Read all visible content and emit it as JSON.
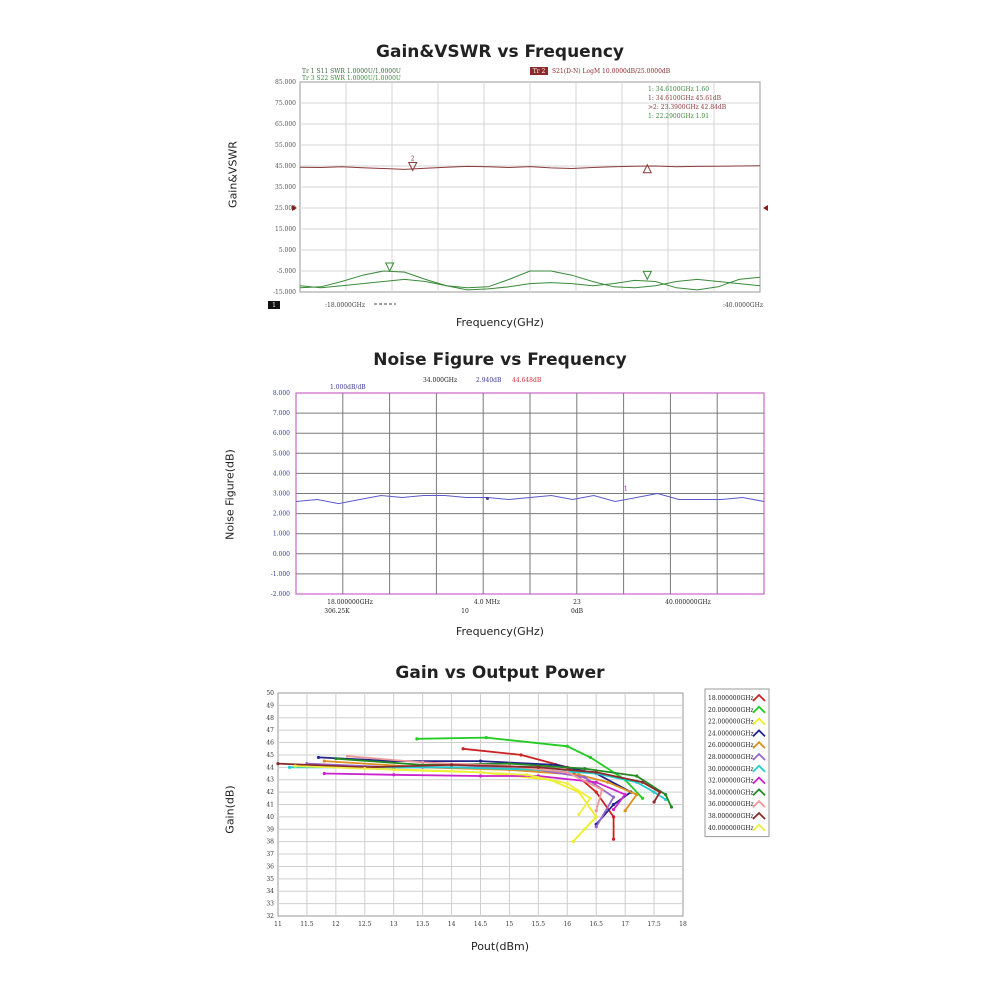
{
  "chart_data": [
    {
      "type": "line",
      "title": "Gain&VSWR vs Frequency",
      "xlabel": "Frequency(GHz)",
      "ylabel": "Gain&VSWR",
      "xlim": [
        18,
        40
      ],
      "ylim": [
        -15,
        85
      ],
      "y_ticks": [
        "85.000",
        "75.000",
        "65.000",
        "55.000",
        "45.000",
        "35.000",
        "25.000",
        "15.000",
        "5.000",
        "-5.000",
        "-15.000"
      ],
      "x_start_label": ":18.0000GHz",
      "x_end_label": ":40.0000GHz",
      "trace_labels": [
        "Tr 1  S11 SWR 1.0000U/1.0000U",
        "Tr 3  S22 SWR 1.0000U/1.0000U"
      ],
      "s21_tag": "Tr 2",
      "s21_label": "S21(D-N) LogM 10.0000dB/25.0000dB",
      "channel_tag": "1",
      "markers": [
        "1:   34.6100GHz 1.60",
        "1:   34.6100GHz 45.61dB",
        ">2:  23.3900GHz 42.84dB",
        "1:   22.2900GHz 1.91"
      ],
      "grid": true,
      "series": [
        {
          "x": [
            18,
            19,
            20,
            21,
            22,
            23,
            24,
            25,
            26,
            27,
            28,
            29,
            30,
            31,
            32,
            33,
            34,
            35,
            36,
            37,
            38,
            39,
            40
          ],
          "values": [
            44.4,
            44.3,
            44.6,
            44.2,
            43.8,
            43.4,
            43.9,
            44.4,
            44.8,
            44.6,
            44.3,
            44.7,
            44.1,
            43.8,
            44.3,
            44.6,
            44.9,
            45.0,
            44.6,
            44.8,
            44.9,
            45.0,
            45.1
          ],
          "color": "#8b3a3a"
        },
        {
          "x": [
            18,
            19,
            20,
            21,
            22,
            23,
            24,
            25,
            26,
            27,
            28,
            29,
            30,
            31,
            32,
            33,
            34,
            35,
            36,
            37,
            38,
            39,
            40
          ],
          "values": [
            -13,
            -12.5,
            -10,
            -7,
            -5,
            -5.5,
            -9,
            -12,
            -13,
            -12.5,
            -9,
            -5,
            -5,
            -7,
            -10,
            -12.5,
            -13,
            -12,
            -10,
            -9,
            -10,
            -11,
            -12
          ],
          "color": "#3a8a3a"
        },
        {
          "x": [
            18,
            19,
            20,
            21,
            22,
            23,
            24,
            25,
            26,
            27,
            28,
            29,
            30,
            31,
            32,
            33,
            34,
            35,
            36,
            37,
            38,
            39,
            40
          ],
          "values": [
            -12,
            -13,
            -12,
            -11,
            -10,
            -9,
            -10,
            -12,
            -14,
            -13.5,
            -12.5,
            -11,
            -10.5,
            -11,
            -12,
            -11,
            -9.5,
            -10,
            -13,
            -14,
            -12.5,
            -9,
            -8
          ],
          "color": "#3a8a3a"
        }
      ],
      "marker_points": [
        {
          "label": "2",
          "x": 23.39,
          "y": 42.84,
          "color": "#8b3a3a"
        },
        {
          "label": "",
          "x": 34.61,
          "y": 45.61,
          "color": "#8b3a3a"
        },
        {
          "label": "",
          "x": 22.29,
          "y": -5.0,
          "color": "#3a8a3a"
        },
        {
          "label": "",
          "x": 34.61,
          "y": -9.0,
          "color": "#3a8a3a"
        }
      ]
    },
    {
      "type": "line",
      "title": "Noise Figure vs Frequency",
      "xlabel": "Frequency(GHz)",
      "ylabel": "Noise Figure(dB)",
      "xlim": [
        18,
        40
      ],
      "ylim": [
        -2,
        8
      ],
      "y_ticks": [
        "8.000",
        "7.000",
        "6.000",
        "5.000",
        "4.000",
        "3.000",
        "2.000",
        "1.000",
        "0.000",
        "-1.000",
        "-2.000"
      ],
      "scale_label": "1.000dB/dB",
      "header_freq": "34.000GHz",
      "header_nf": "2.940dB",
      "header_gain": "44.648dB",
      "footer_row1": [
        "18.000000GHz",
        "4.0 MHz",
        "23",
        "40.000000GHz"
      ],
      "footer_row2": [
        "306.25K",
        "10",
        "0dB"
      ],
      "marker_label": "1",
      "grid": true,
      "series": [
        {
          "x": [
            18,
            19,
            20,
            21,
            22,
            23,
            24,
            25,
            26,
            27,
            28,
            29,
            30,
            31,
            32,
            33,
            34,
            35,
            36,
            37,
            38,
            39,
            40
          ],
          "values": [
            2.6,
            2.7,
            2.5,
            2.7,
            2.9,
            2.8,
            2.9,
            2.9,
            2.8,
            2.8,
            2.7,
            2.8,
            2.9,
            2.7,
            2.9,
            2.6,
            2.8,
            3.0,
            2.7,
            2.7,
            2.7,
            2.8,
            2.6
          ],
          "color": "#5a5acc"
        }
      ]
    },
    {
      "type": "line",
      "title": "Gain vs Output Power",
      "xlabel": "Pout(dBm)",
      "ylabel": "Gain(dB)",
      "xlim": [
        11,
        18
      ],
      "ylim": [
        32,
        50
      ],
      "x_ticks": [
        "11",
        "11.5",
        "12",
        "12.5",
        "13",
        "13.5",
        "14",
        "14.5",
        "15",
        "15.5",
        "16",
        "16.5",
        "17",
        "17.5",
        "18"
      ],
      "y_ticks": [
        "32",
        "33",
        "34",
        "35",
        "36",
        "37",
        "38",
        "39",
        "40",
        "41",
        "42",
        "43",
        "44",
        "45",
        "46",
        "47",
        "48",
        "49",
        "50"
      ],
      "legend_position": "right",
      "grid": true,
      "series": [
        {
          "name": "18.000000GHz",
          "color": "#cc2222",
          "x": [
            14.2,
            15.2,
            16,
            16.5,
            16.8,
            16.8
          ],
          "values": [
            45.5,
            45.0,
            44.0,
            42.0,
            40.0,
            38.2
          ]
        },
        {
          "name": "20.000000GHz",
          "color": "#22cc22",
          "x": [
            13.4,
            14.6,
            16,
            16.4,
            17,
            17.3
          ],
          "values": [
            46.3,
            46.4,
            45.7,
            44.8,
            43.0,
            41.5
          ]
        },
        {
          "name": "22.000000GHz",
          "color": "#eeee22",
          "x": [
            11.6,
            13,
            14.5,
            15.7,
            16.2,
            16.5,
            16.3,
            16.1
          ],
          "values": [
            44.2,
            43.8,
            43.6,
            43.0,
            42.0,
            40.0,
            39.0,
            38.0
          ]
        },
        {
          "name": "24.000000GHz",
          "color": "#22228b",
          "x": [
            11.7,
            13,
            14.5,
            15.8,
            16.5,
            17.1,
            16.8,
            16.5
          ],
          "values": [
            44.8,
            44.5,
            44.5,
            44.2,
            43.5,
            42.0,
            41.0,
            39.4
          ]
        },
        {
          "name": "26.000000GHz",
          "color": "#e09020",
          "x": [
            11.8,
            13.5,
            15,
            16.2,
            16.7,
            17.2,
            17.0
          ],
          "values": [
            44.5,
            44.0,
            43.8,
            43.4,
            42.8,
            41.8,
            40.5
          ]
        },
        {
          "name": "28.000000GHz",
          "color": "#9966cc",
          "x": [
            11.5,
            13,
            14.5,
            15.5,
            16.3,
            16.8,
            16.5
          ],
          "values": [
            44.3,
            44.0,
            44.0,
            43.8,
            43.2,
            41.6,
            39.2
          ]
        },
        {
          "name": "30.000000GHz",
          "color": "#22cccc",
          "x": [
            11.2,
            12.5,
            14,
            15.5,
            16.5,
            17.2,
            17.5,
            17.7
          ],
          "values": [
            44.0,
            44.0,
            44.0,
            43.8,
            43.5,
            42.8,
            42.0,
            41.4
          ]
        },
        {
          "name": "32.000000GHz",
          "color": "#cc22cc",
          "x": [
            11.8,
            13,
            14.5,
            15.5,
            16.5,
            17.0,
            16.8
          ],
          "values": [
            43.5,
            43.4,
            43.3,
            43.3,
            42.8,
            41.8,
            40.6
          ]
        },
        {
          "name": "34.000000GHz",
          "color": "#228b22",
          "x": [
            12.0,
            13.5,
            15,
            16.3,
            17.2,
            17.7,
            17.8
          ],
          "values": [
            44.7,
            44.2,
            44.3,
            43.9,
            43.3,
            41.8,
            40.8
          ]
        },
        {
          "name": "36.000000GHz",
          "color": "#ee9999",
          "x": [
            12.2,
            13.5,
            15,
            16,
            16.6,
            16.5
          ],
          "values": [
            44.9,
            44.4,
            44.1,
            43.6,
            42.2,
            40.5
          ]
        },
        {
          "name": "38.000000GHz",
          "color": "#8b2a2a",
          "x": [
            11.0,
            12.5,
            14,
            15.5,
            16.5,
            17.3,
            17.6,
            17.5
          ],
          "values": [
            44.3,
            44.0,
            44.2,
            44.0,
            43.6,
            42.8,
            42.0,
            41.2
          ]
        },
        {
          "name": "40.000000GHz",
          "color": "#eeee44",
          "x": [
            11.3,
            12.5,
            14,
            15.3,
            16.0,
            16.4,
            16.2
          ],
          "values": [
            44.1,
            43.9,
            43.7,
            43.4,
            42.7,
            41.5,
            40.2
          ]
        }
      ]
    }
  ]
}
